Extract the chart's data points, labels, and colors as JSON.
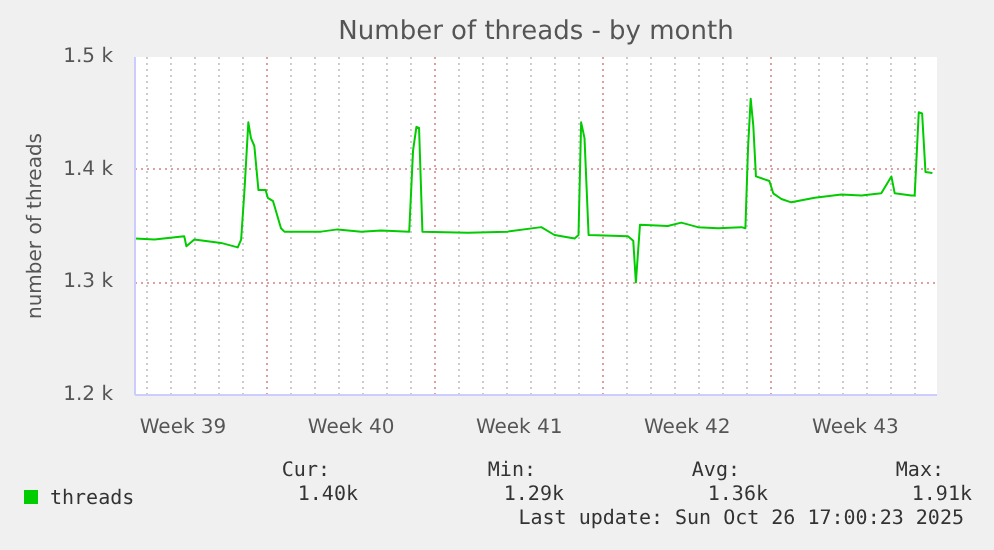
{
  "chart_data": {
    "type": "line",
    "title": "Number of threads - by month",
    "ylabel": "number of threads",
    "x": [
      "2025-09-23T12:00",
      "2025-09-24T07:26",
      "2025-09-25T13:12",
      "2025-09-25T15:22",
      "2025-09-25T23:17",
      "2025-09-27T01:55",
      "2025-09-27T18:43",
      "2025-09-27T22:05",
      "2025-09-28T01:26",
      "2025-09-28T05:17",
      "2025-09-28T07:55",
      "2025-09-28T11:17",
      "2025-09-28T15:22",
      "2025-09-28T22:34",
      "2025-09-29T00:43",
      "2025-09-29T06:00",
      "2025-09-29T13:55",
      "2025-09-29T17:17",
      "2025-10-01T06:00",
      "2025-10-01T22:34",
      "2025-10-02T22:05",
      "2025-10-03T18:00",
      "2025-10-04T22:05",
      "2025-10-05T01:55",
      "2025-10-05T05:17",
      "2025-10-05T07:55",
      "2025-10-05T11:17",
      "2025-10-07T08:38",
      "2025-10-09T00:43",
      "2025-10-10T10:05",
      "2025-10-10T23:17",
      "2025-10-11T19:26",
      "2025-10-11T23:17",
      "2025-10-12T01:55",
      "2025-10-12T05:17",
      "2025-10-12T09:22",
      "2025-10-14T00:43",
      "2025-10-14T06:00",
      "2025-10-14T08:38",
      "2025-10-14T12:43",
      "2025-10-15T16:34",
      "2025-10-16T06:00",
      "2025-10-16T22:34",
      "2025-10-17T18:43",
      "2025-10-18T18:00",
      "2025-10-18T22:05",
      "2025-10-19T00:43",
      "2025-10-19T03:22",
      "2025-10-19T06:00",
      "2025-10-19T08:38",
      "2025-10-19T22:05",
      "2025-10-20T01:55",
      "2025-10-20T10:05",
      "2025-10-20T19:55",
      "2025-10-21T19:26",
      "2025-10-22T22:05",
      "2025-10-23T18:00",
      "2025-10-24T13:55",
      "2025-10-25T00:00",
      "2025-10-25T03:22",
      "2025-10-25T19:55",
      "2025-10-25T23:17",
      "2025-10-26T03:22",
      "2025-10-26T06:43",
      "2025-10-26T10:05",
      "2025-10-26T17:00"
    ],
    "series": [
      {
        "name": "threads",
        "color": "#00cc00",
        "values": [
          1339,
          1338,
          1341,
          1332,
          1338,
          1335,
          1331,
          1338,
          1382,
          1442,
          1428,
          1421,
          1382,
          1382,
          1375,
          1372,
          1348,
          1345,
          1345,
          1347,
          1345,
          1346,
          1345,
          1417,
          1438,
          1437,
          1345,
          1344,
          1345,
          1349,
          1342,
          1339,
          1342,
          1442,
          1428,
          1342,
          1341,
          1337,
          1300,
          1351,
          1350,
          1353,
          1349,
          1348,
          1349,
          1348,
          1419,
          1463,
          1439,
          1394,
          1390,
          1379,
          1374,
          1371,
          1375,
          1378,
          1377,
          1379,
          1394,
          1379,
          1377,
          1377,
          1451,
          1450,
          1398,
          1397
        ]
      }
    ],
    "xlim": [
      "2025-09-23T12:00",
      "2025-10-26T21:36"
    ],
    "xticks": [
      {
        "value": "2025-09-25T12:00",
        "label": "Week 39"
      },
      {
        "value": "2025-10-02T12:00",
        "label": "Week 40"
      },
      {
        "value": "2025-10-09T12:00",
        "label": "Week 41"
      },
      {
        "value": "2025-10-16T12:00",
        "label": "Week 42"
      },
      {
        "value": "2025-10-23T12:00",
        "label": "Week 43"
      }
    ],
    "ylim": [
      1200,
      1500
    ],
    "yticks": [
      {
        "value": 1200,
        "label": "1.2 k"
      },
      {
        "value": 1300,
        "label": "1.3 k"
      },
      {
        "value": 1400,
        "label": "1.4 k"
      },
      {
        "value": 1500,
        "label": "1.5 k"
      }
    ],
    "grid": true,
    "legend": "bottom left",
    "marker": "none",
    "line_style": "solid",
    "annotations": [
      "Cur: 1.40k",
      "Min: 1.29k",
      "Avg: 1.36k",
      "Max: 1.91k",
      "Last update: Sun Oct 26 17:00:23 2025"
    ]
  }
}
